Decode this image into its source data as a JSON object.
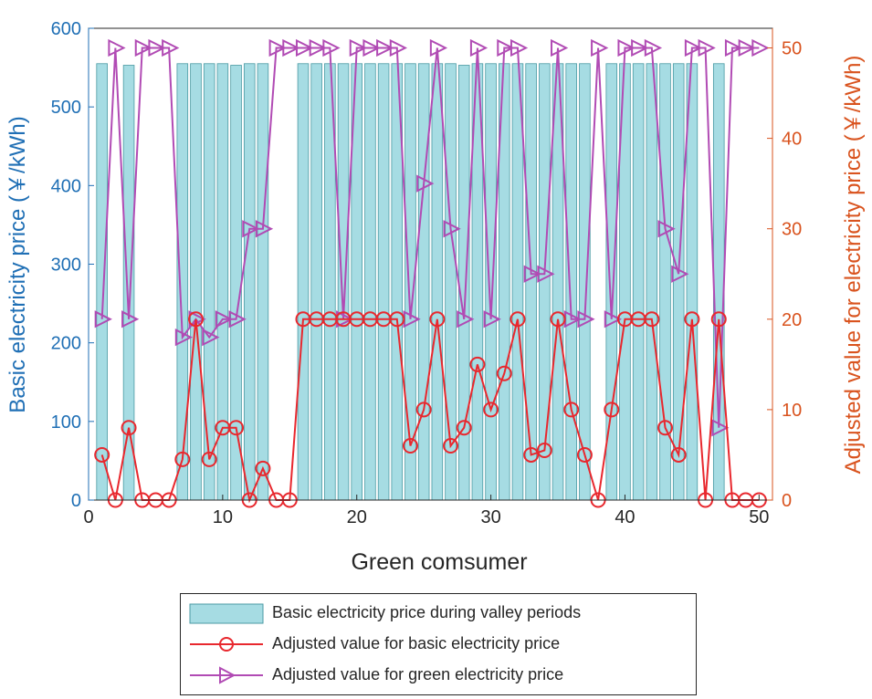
{
  "chart_data": {
    "type": "bar+line (dual y-axis)",
    "xlabel": "Green comsumer",
    "ylabel_left": "Basic electricity price (￥/kWh)",
    "ylabel_right": "Adjusted value for electricity price (￥/kWh)",
    "xlim": [
      0,
      51
    ],
    "ylim_left": [
      0,
      600
    ],
    "ylim_right": [
      0,
      52.17
    ],
    "xticks": [
      0,
      10,
      20,
      30,
      40,
      50
    ],
    "yticks_left": [
      0,
      100,
      200,
      300,
      400,
      500,
      600
    ],
    "yticks_right": [
      0,
      10,
      20,
      30,
      40,
      50
    ],
    "colors": {
      "bar": "#a6dce3",
      "bar_edge": "#4a9aa3",
      "basic": "#e8282e",
      "green": "#b14bb4",
      "left_axis": "#1f6fb5",
      "right_axis": "#d9531e"
    },
    "consumers": [
      1,
      2,
      3,
      4,
      5,
      6,
      7,
      8,
      9,
      10,
      11,
      12,
      13,
      14,
      15,
      16,
      17,
      18,
      19,
      20,
      21,
      22,
      23,
      24,
      25,
      26,
      27,
      28,
      29,
      30,
      31,
      32,
      33,
      34,
      35,
      36,
      37,
      38,
      39,
      40,
      41,
      42,
      43,
      44,
      45,
      46,
      47,
      48,
      49,
      50
    ],
    "series": [
      {
        "name": "Basic electricity price during valley periods",
        "axis": "left",
        "type": "bar",
        "values": [
          555,
          0,
          553,
          0,
          0,
          0,
          555,
          555,
          555,
          555,
          553,
          555,
          555,
          0,
          0,
          555,
          555,
          555,
          555,
          555,
          555,
          555,
          555,
          555,
          555,
          555,
          555,
          553,
          555,
          555,
          555,
          555,
          555,
          555,
          555,
          555,
          555,
          0,
          555,
          555,
          555,
          555,
          555,
          555,
          555,
          0,
          555,
          0,
          0,
          0
        ]
      },
      {
        "name": "Adjusted value for basic electricity price",
        "axis": "right",
        "type": "line",
        "marker": "circle",
        "values": [
          5,
          0,
          8,
          0,
          0,
          0,
          4.5,
          20,
          4.5,
          8,
          8,
          0,
          3.5,
          0,
          0,
          20,
          20,
          20,
          20,
          20,
          20,
          20,
          20,
          6,
          10,
          20,
          6,
          8,
          15,
          10,
          14,
          20,
          5,
          5.5,
          20,
          10,
          5,
          0,
          10,
          20,
          20,
          20,
          8,
          5,
          20,
          0,
          20,
          0,
          0,
          0
        ]
      },
      {
        "name": "Adjusted value for green electricity price",
        "axis": "right",
        "type": "line",
        "marker": "triangle-right",
        "values": [
          20,
          50,
          20,
          50,
          50,
          50,
          18,
          20,
          18,
          20,
          20,
          30,
          30,
          50,
          50,
          50,
          50,
          50,
          20,
          50,
          50,
          50,
          50,
          20,
          35,
          50,
          30,
          20,
          50,
          20,
          50,
          50,
          25,
          25,
          50,
          20,
          20,
          50,
          20,
          50,
          50,
          50,
          30,
          25,
          50,
          50,
          8,
          50,
          50,
          50
        ]
      }
    ]
  }
}
